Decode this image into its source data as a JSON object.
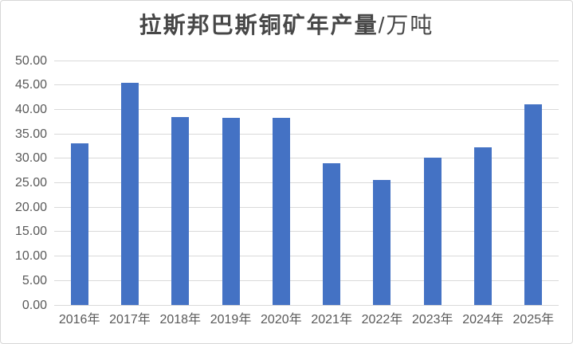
{
  "title": {
    "main": "拉斯邦巴斯铜矿年产量",
    "unit": "/万吨"
  },
  "colors": {
    "background": "#FFFFFF",
    "frame_border": "#D7D7D7",
    "bar": "#4472C4",
    "gridline": "#D9D9D9",
    "axis_text": "#595959",
    "title_text": "#474747"
  },
  "chart_data": {
    "type": "bar",
    "title": "拉斯邦巴斯铜矿年产量/万吨",
    "categories": [
      "2016年",
      "2017年",
      "2018年",
      "2019年",
      "2020年",
      "2021年",
      "2022年",
      "2023年",
      "2024年",
      "2025年"
    ],
    "values": [
      33.0,
      45.4,
      38.5,
      38.3,
      38.2,
      29.0,
      25.5,
      30.2,
      32.3,
      41.0
    ],
    "xlabel": "",
    "ylabel": "",
    "ylim": [
      0,
      50
    ],
    "ytick_step": 5,
    "yticks": [
      "0.00",
      "5.00",
      "10.00",
      "15.00",
      "20.00",
      "25.00",
      "30.00",
      "35.00",
      "40.00",
      "45.00",
      "50.00"
    ],
    "grid": "horizontal",
    "legend": "none",
    "bar_color": "#4472C4"
  }
}
